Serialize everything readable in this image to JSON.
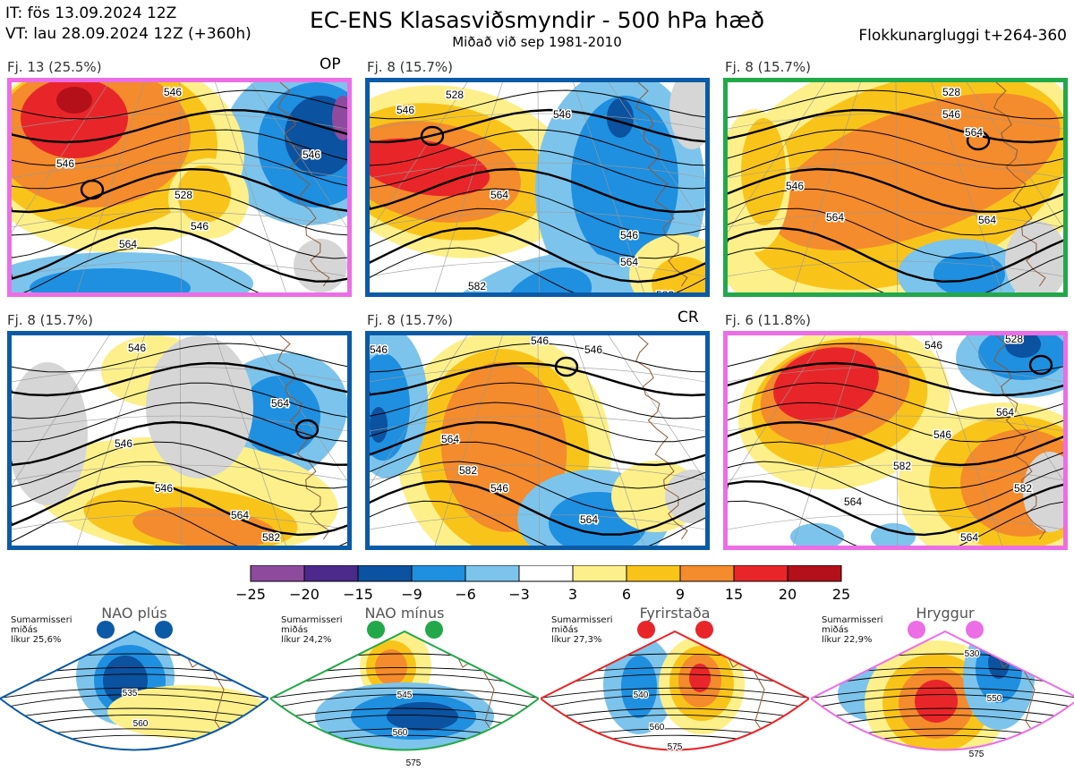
{
  "header": {
    "it_line": "IT: fös 13.09.2024 12Z",
    "vt_line": "VT: lau 28.09.2024 12Z  (+360h)",
    "title": "EC-ENS Klasasviðsmyndir - 500 hPa hæð",
    "subtitle": "Miðað við sep 1981-2010",
    "window": "Flokkunargluggi t+264-360"
  },
  "colors": {
    "nao_plus": "#0b5aa6",
    "nao_minus": "#22a84a",
    "blocking": "#e8262a",
    "ridge": "#ec6ee6"
  },
  "panels": [
    {
      "caption": "Fj. 13 (25.5%)",
      "tag": "OP",
      "border": "#ec6ee6",
      "labels": [
        "546",
        "546",
        "546",
        "528",
        "546",
        "564"
      ]
    },
    {
      "caption": "Fj. 8 (15.7%)",
      "tag": "",
      "border": "#0b5aa6",
      "labels": [
        "528",
        "546",
        "546",
        "564",
        "546",
        "564",
        "582",
        "582"
      ]
    },
    {
      "caption": "Fj. 8 (15.7%)",
      "tag": "",
      "border": "#22a84a",
      "labels": [
        "528",
        "546",
        "564",
        "546",
        "564",
        "564"
      ]
    },
    {
      "caption": "Fj. 8 (15.7%)",
      "tag": "",
      "border": "#0b5aa6",
      "labels": [
        "546",
        "564",
        "546",
        "546",
        "564",
        "582"
      ]
    },
    {
      "caption": "Fj. 8 (15.7%)",
      "tag": "CR",
      "border": "#0b5aa6",
      "labels": [
        "546",
        "546",
        "546",
        "564",
        "582",
        "546",
        "564"
      ]
    },
    {
      "caption": "Fj. 6 (11.8%)",
      "tag": "",
      "border": "#ec6ee6",
      "labels": [
        "546",
        "528",
        "564",
        "546",
        "564",
        "582",
        "564",
        "582"
      ]
    }
  ],
  "colorbar": {
    "ticks": [
      "−25",
      "−20",
      "−15",
      "−9",
      "−6",
      "−3",
      "3",
      "6",
      "9",
      "15",
      "20",
      "25"
    ],
    "colors": [
      "#8e4b9e",
      "#4b2a8c",
      "#0b52a0",
      "#1f8fe0",
      "#7cc4ec",
      "#ffffff",
      "#fdf08a",
      "#f9c41a",
      "#f48b2c",
      "#e8262a",
      "#b3101a"
    ]
  },
  "regimes": [
    {
      "name": "NAO plús",
      "text": "Sumarmisseri\nmiðás\nlíkur 25,6%",
      "labels": [
        "535",
        "560"
      ]
    },
    {
      "name": "NAO mínus",
      "text": "Sumarmisseri\nmiðás\nlíkur 24,2%",
      "labels": [
        "545",
        "560",
        "575"
      ]
    },
    {
      "name": "Fyrirstaða",
      "text": "Sumarmisseri\nmiðás\nlíkur 27,3%",
      "labels": [
        "540",
        "560",
        "575"
      ]
    },
    {
      "name": "Hryggur",
      "text": "Sumarmisseri\nmiðás\nlíkur 22,9%",
      "labels": [
        "530",
        "550",
        "575"
      ]
    }
  ]
}
